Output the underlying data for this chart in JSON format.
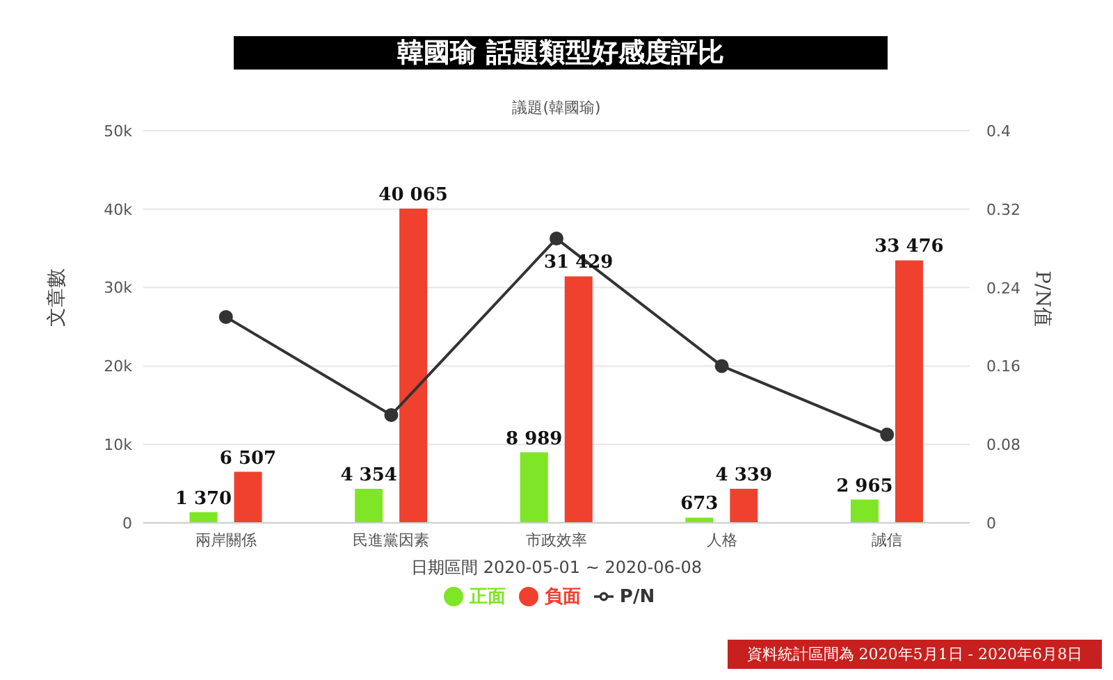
{
  "chart_data": {
    "type": "bar",
    "title": "韓國瑜 話題類型好感度評比",
    "subtitle": "議題(韓國瑜)",
    "xlabel": "日期區間 2020-05-01 ~ 2020-06-08",
    "ylabel": "文章數",
    "y2label": "P/N值",
    "categories": [
      "兩岸關係",
      "民進黨因素",
      "市政效率",
      "人格",
      "誠信"
    ],
    "series": [
      {
        "name": "正面",
        "color": "#7ee626",
        "values": [
          1370,
          4354,
          8989,
          673,
          2965
        ],
        "value_labels": [
          "1 370",
          "4 354",
          "8 989",
          "673",
          "2 965"
        ]
      },
      {
        "name": "負面",
        "color": "#f0402e",
        "values": [
          6507,
          40065,
          31429,
          4339,
          33476
        ],
        "value_labels": [
          "6 507",
          "40 065",
          "31 429",
          "4 339",
          "33 476"
        ]
      },
      {
        "name": "P/N",
        "type": "line",
        "axis": "y2",
        "color": "#333333",
        "values": [
          0.21,
          0.11,
          0.29,
          0.16,
          0.09
        ],
        "marker": "circle"
      }
    ],
    "ylim": [
      0,
      50000
    ],
    "yticks": [
      {
        "value": 0,
        "label": "0"
      },
      {
        "value": 10000,
        "label": "10k"
      },
      {
        "value": 20000,
        "label": "20k"
      },
      {
        "value": 30000,
        "label": "30k"
      },
      {
        "value": 40000,
        "label": "40k"
      },
      {
        "value": 50000,
        "label": "50k"
      }
    ],
    "y2lim": [
      0,
      0.4
    ],
    "y2ticks": [
      0,
      0.08,
      0.16,
      0.24,
      0.32,
      0.4
    ],
    "grid": "y",
    "legend": "bottom",
    "annotations": [
      "資料統計區間為 2020年5月1日 - 2020年6月8日"
    ]
  }
}
